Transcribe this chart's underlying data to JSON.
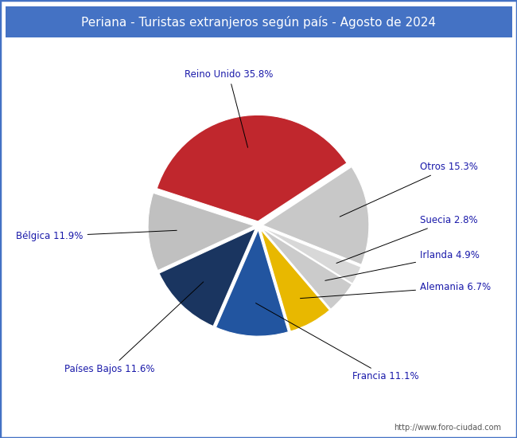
{
  "title": "Periana - Turistas extranjeros según país - Agosto de 2024",
  "title_bg_color": "#4472c4",
  "title_text_color": "#ffffff",
  "watermark": "http://www.foro-ciudad.com",
  "labels": [
    "Reino Unido",
    "Otros",
    "Suecia",
    "Irlanda",
    "Alemania",
    "Francia",
    "Países Bajos",
    "Bélgica"
  ],
  "values": [
    35.8,
    15.3,
    2.8,
    4.9,
    6.7,
    11.1,
    11.6,
    11.9
  ],
  "colors": [
    "#c0272d",
    "#c8c8c8",
    "#d8d8d8",
    "#cbcbcb",
    "#e8b800",
    "#2255a0",
    "#1a3560",
    "#c0c0c0"
  ],
  "explode": [
    0.04,
    0.04,
    0.04,
    0.04,
    0.04,
    0.04,
    0.04,
    0.04
  ],
  "label_color": "#1a1aaa",
  "border_color": "#4472c4",
  "background_color": "#ffffff",
  "label_texts": [
    "Reino Unido 35.8%",
    "Otros 15.3%",
    "Suecia 2.8%",
    "Irlanda 4.9%",
    "Alemania 6.7%",
    "Francia 11.1%",
    "Países Bajos 11.6%",
    "Bélgica 11.9%"
  ],
  "startangle": 162
}
